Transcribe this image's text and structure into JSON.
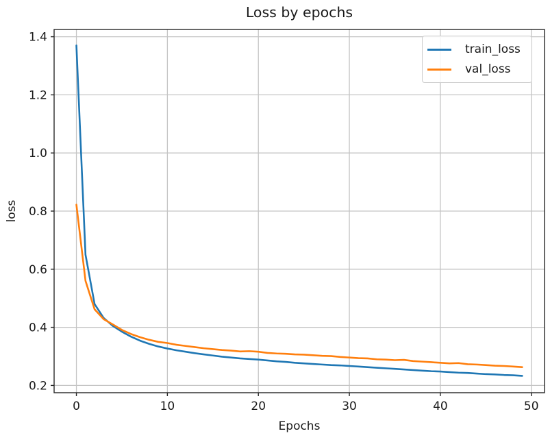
{
  "figure": {
    "title": "Loss by epochs",
    "xlabel": "Epochs",
    "ylabel": "loss"
  },
  "chart_data": {
    "type": "line",
    "title": "Loss by epochs",
    "xlabel": "Epochs",
    "ylabel": "loss",
    "grid": true,
    "legend_position": "upper right",
    "xlim": [
      -2.45,
      51.45
    ],
    "ylim": [
      0.175,
      1.425
    ],
    "xticks": [
      0,
      10,
      20,
      30,
      40,
      50
    ],
    "xtick_labels": [
      "0",
      "10",
      "20",
      "30",
      "40",
      "50"
    ],
    "yticks": [
      0.2,
      0.4,
      0.6,
      0.8,
      1.0,
      1.2,
      1.4
    ],
    "ytick_labels": [
      "0.2",
      "0.4",
      "0.6",
      "0.8",
      "1.0",
      "1.2",
      "1.4"
    ],
    "x": [
      0,
      1,
      2,
      3,
      4,
      5,
      6,
      7,
      8,
      9,
      10,
      11,
      12,
      13,
      14,
      15,
      16,
      17,
      18,
      19,
      20,
      21,
      22,
      23,
      24,
      25,
      26,
      27,
      28,
      29,
      30,
      31,
      32,
      33,
      34,
      35,
      36,
      37,
      38,
      39,
      40,
      41,
      42,
      43,
      44,
      45,
      46,
      47,
      48,
      49
    ],
    "series": [
      {
        "name": "train_loss",
        "color": "#1f77b4",
        "values": [
          1.37,
          0.65,
          0.48,
          0.432,
          0.405,
          0.385,
          0.368,
          0.354,
          0.343,
          0.334,
          0.327,
          0.321,
          0.316,
          0.311,
          0.307,
          0.303,
          0.299,
          0.296,
          0.293,
          0.291,
          0.289,
          0.286,
          0.283,
          0.281,
          0.278,
          0.276,
          0.274,
          0.272,
          0.27,
          0.269,
          0.267,
          0.265,
          0.263,
          0.261,
          0.259,
          0.257,
          0.255,
          0.253,
          0.251,
          0.249,
          0.248,
          0.246,
          0.244,
          0.243,
          0.241,
          0.239,
          0.238,
          0.236,
          0.235,
          0.233
        ]
      },
      {
        "name": "val_loss",
        "color": "#ff7f0e",
        "values": [
          0.822,
          0.56,
          0.462,
          0.428,
          0.41,
          0.391,
          0.377,
          0.366,
          0.357,
          0.35,
          0.346,
          0.34,
          0.336,
          0.332,
          0.328,
          0.325,
          0.322,
          0.32,
          0.317,
          0.318,
          0.316,
          0.312,
          0.31,
          0.309,
          0.307,
          0.306,
          0.304,
          0.302,
          0.301,
          0.298,
          0.296,
          0.294,
          0.293,
          0.29,
          0.289,
          0.287,
          0.288,
          0.284,
          0.282,
          0.28,
          0.278,
          0.276,
          0.277,
          0.273,
          0.272,
          0.27,
          0.268,
          0.267,
          0.265,
          0.263
        ]
      }
    ],
    "colors": {
      "grid": "#c4c4c4",
      "spine": "#262626",
      "text": "#1a1a1a",
      "background": "#ffffff"
    }
  }
}
